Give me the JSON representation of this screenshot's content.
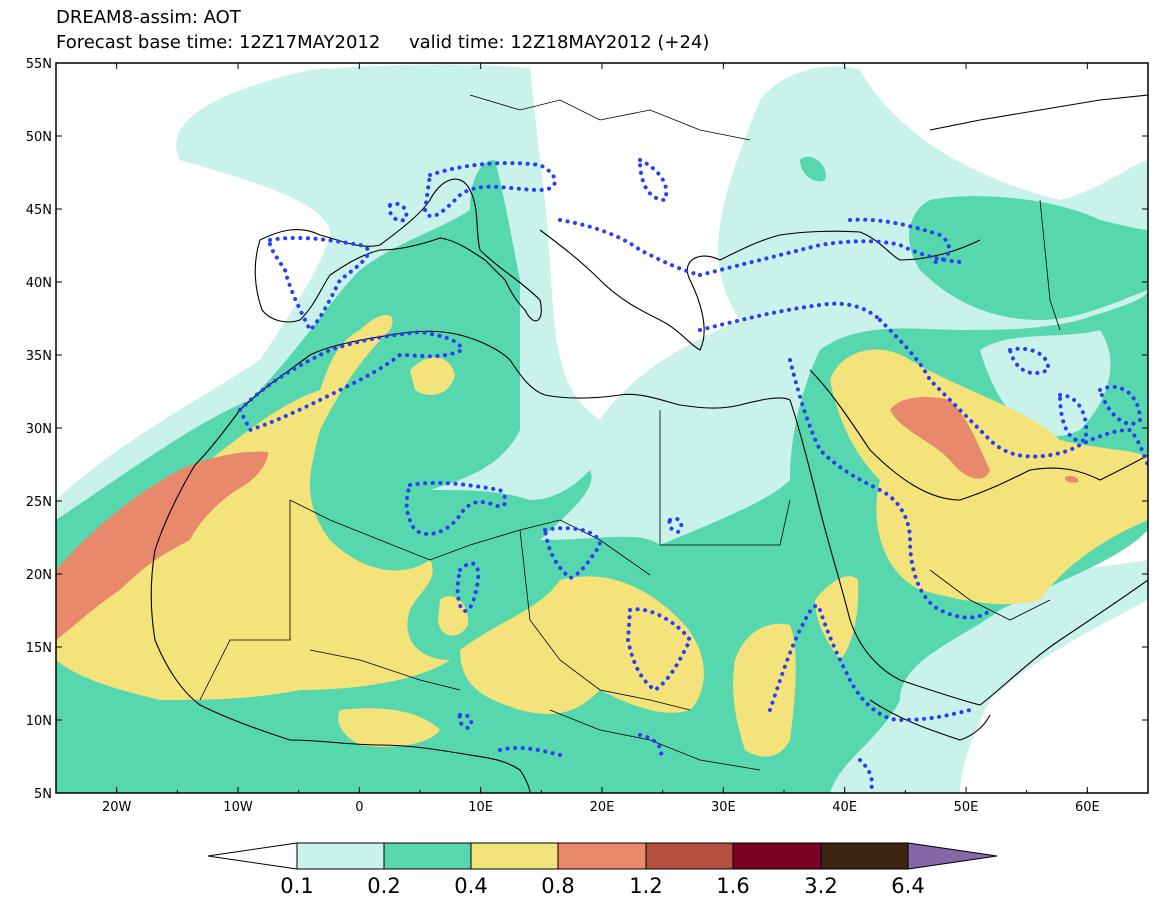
{
  "title": {
    "line1": "DREAM8-assim: AOT",
    "line2_base": "Forecast base time: 12Z17MAY2012",
    "line2_valid": "valid time: 12Z18MAY2012 (+24)"
  },
  "map": {
    "lon_range": [
      -25,
      65
    ],
    "lat_range": [
      5,
      55
    ],
    "lat_ticks": [
      "5N",
      "10N",
      "15N",
      "20N",
      "25N",
      "30N",
      "35N",
      "40N",
      "45N",
      "50N",
      "55N"
    ],
    "lon_ticks": [
      "20W",
      "10W",
      "0",
      "10E",
      "20E",
      "30E",
      "40E",
      "50E",
      "60E"
    ],
    "colors": {
      "c01": "#c8f2ea",
      "c02": "#57d7ad",
      "c04": "#f4e37a",
      "c08": "#e7896a",
      "c12": "#b5503f",
      "c16": "#7a0024",
      "c32": "#3d2312",
      "c64": "#8566a8",
      "obs_contour": "#2a3ff5",
      "coast": "#000000"
    }
  },
  "colorbar": {
    "labels": [
      "0.1",
      "0.2",
      "0.4",
      "0.8",
      "1.2",
      "1.6",
      "3.2",
      "6.4"
    ]
  }
}
